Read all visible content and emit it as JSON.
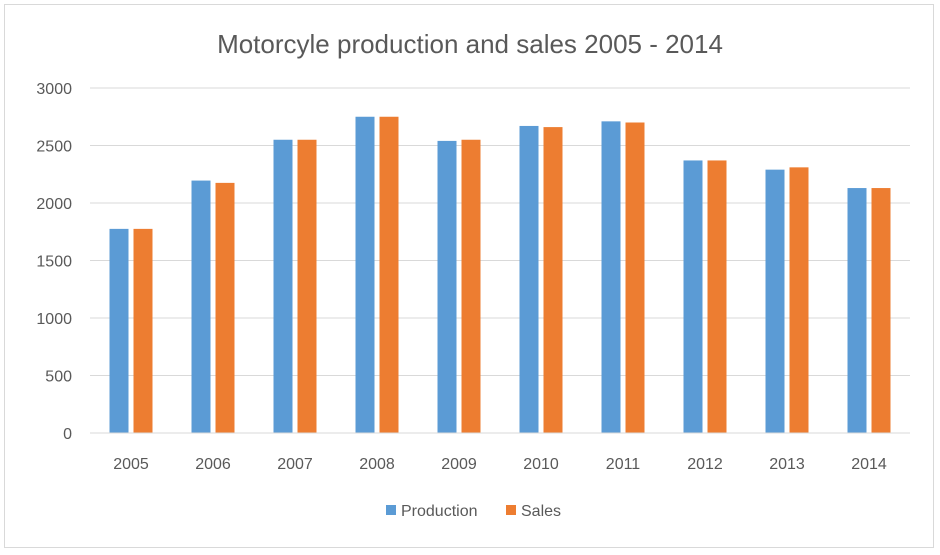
{
  "chart_data": {
    "type": "bar",
    "title": "Motorcyle production and sales 2005 - 2014",
    "xlabel": "",
    "ylabel": "",
    "categories": [
      "2005",
      "2006",
      "2007",
      "2008",
      "2009",
      "2010",
      "2011",
      "2012",
      "2013",
      "2014"
    ],
    "series": [
      {
        "name": "Production",
        "color": "#5b9bd5",
        "values": [
          1775,
          2195,
          2550,
          2750,
          2540,
          2670,
          2710,
          2370,
          2290,
          2130
        ]
      },
      {
        "name": "Sales",
        "color": "#ed7d31",
        "values": [
          1775,
          2175,
          2550,
          2750,
          2550,
          2660,
          2700,
          2370,
          2310,
          2130
        ]
      }
    ],
    "ylim": [
      0,
      3000
    ],
    "yticks": [
      "0",
      "500",
      "1000",
      "1500",
      "2000",
      "2500",
      "3000"
    ],
    "grid": true,
    "legend_position": "bottom"
  }
}
